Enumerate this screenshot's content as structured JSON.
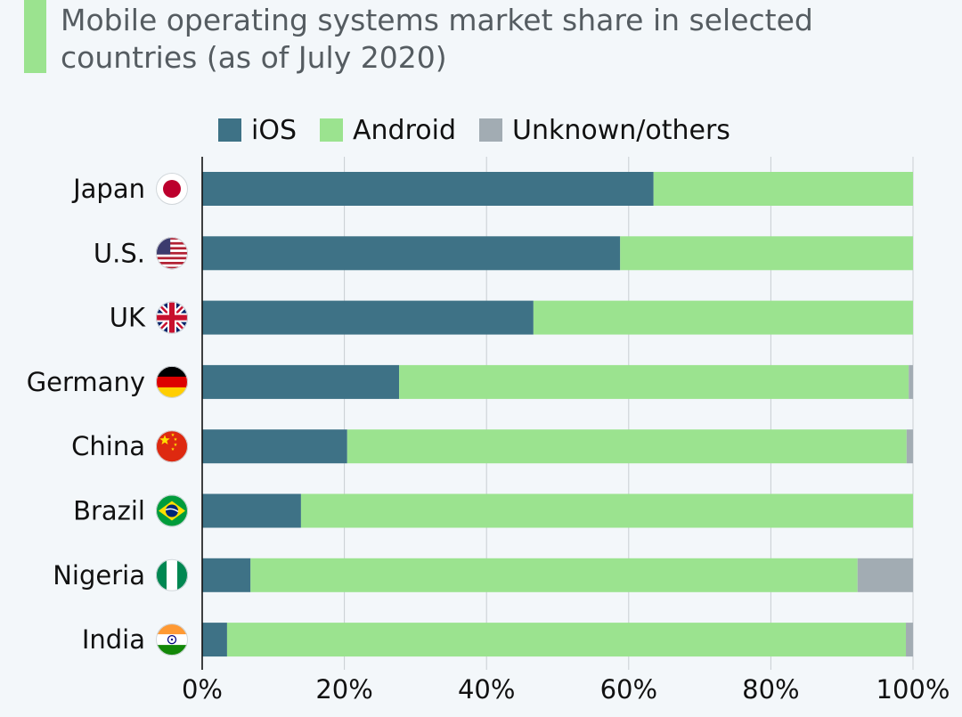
{
  "title": "Mobile operating systems market share in selected countries (as of July 2020)",
  "colors": {
    "accent": "#9be38f",
    "ios": "#3e7286",
    "android": "#9be38f",
    "unknown": "#a2acb3",
    "grid": "#c8ced2"
  },
  "chart_data": {
    "type": "bar",
    "orientation": "horizontal",
    "stacked": true,
    "title": "Mobile operating systems market share in selected countries (as of July 2020)",
    "xlim": [
      0,
      100
    ],
    "x_ticks": [
      "0%",
      "20%",
      "40%",
      "60%",
      "80%",
      "100%"
    ],
    "grid": true,
    "legend_position": "top",
    "categories": [
      {
        "label": "Japan",
        "flag": "japan-flag-icon"
      },
      {
        "label": "U.S.",
        "flag": "us-flag-icon"
      },
      {
        "label": "UK",
        "flag": "uk-flag-icon"
      },
      {
        "label": "Germany",
        "flag": "germany-flag-icon"
      },
      {
        "label": "China",
        "flag": "china-flag-icon"
      },
      {
        "label": "Brazil",
        "flag": "brazil-flag-icon"
      },
      {
        "label": "Nigeria",
        "flag": "nigeria-flag-icon"
      },
      {
        "label": "India",
        "flag": "india-flag-icon"
      }
    ],
    "series": [
      {
        "name": "iOS",
        "color": "#3e7286",
        "values": [
          63.5,
          58.8,
          46.6,
          27.7,
          20.4,
          13.9,
          6.8,
          3.5
        ]
      },
      {
        "name": "Android",
        "color": "#9be38f",
        "values": [
          36.5,
          41.2,
          53.4,
          71.7,
          78.7,
          86.1,
          85.4,
          95.5
        ]
      },
      {
        "name": "Unknown/others",
        "color": "#a2acb3",
        "values": [
          0.0,
          0.0,
          0.0,
          0.6,
          0.9,
          0.0,
          7.8,
          1.0
        ]
      }
    ]
  }
}
